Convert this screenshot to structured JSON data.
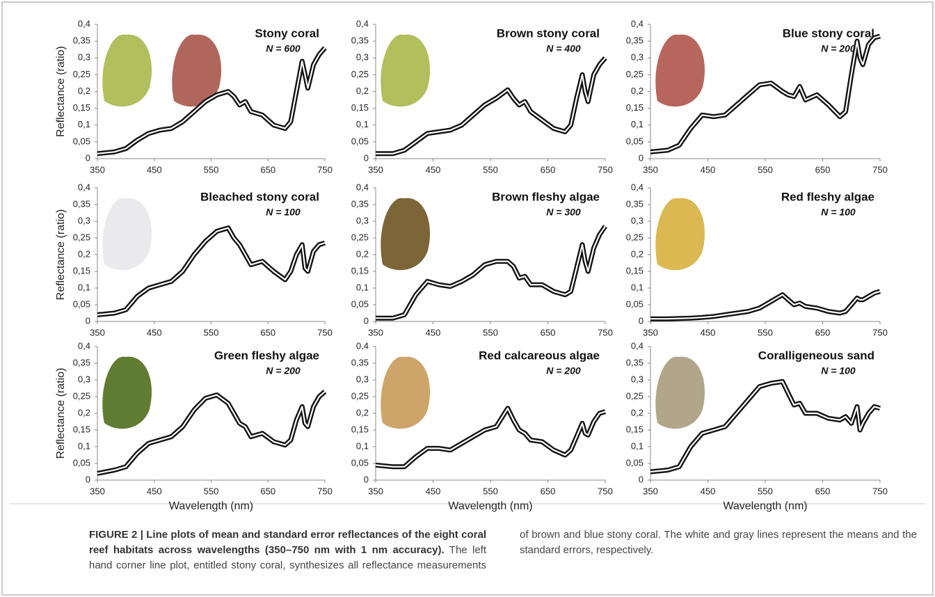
{
  "chart_data": [
    {
      "type": "line",
      "title": "Stony coral",
      "subtitle": "N = 600",
      "y_label": "Reflectance (ratio)",
      "color": "#ffffff",
      "x": [
        350,
        380,
        400,
        420,
        440,
        460,
        480,
        500,
        520,
        540,
        560,
        580,
        590,
        600,
        610,
        620,
        640,
        660,
        680,
        690,
        700,
        710,
        715,
        720,
        730,
        740,
        750
      ],
      "values": [
        0.015,
        0.02,
        0.03,
        0.055,
        0.075,
        0.085,
        0.09,
        0.11,
        0.14,
        0.17,
        0.19,
        0.2,
        0.185,
        0.16,
        0.17,
        0.14,
        0.13,
        0.1,
        0.09,
        0.11,
        0.2,
        0.29,
        0.25,
        0.21,
        0.28,
        0.31,
        0.33
      ],
      "xlim": [
        350,
        750
      ],
      "xticks": [
        350,
        450,
        550,
        650,
        750
      ],
      "ylim": [
        0,
        0.4
      ],
      "yticks": [
        0,
        {
          "value": 0.05,
          "label": "0,05"
        },
        {
          "value": 0.1,
          "label": "0,1"
        },
        {
          "value": 0.15,
          "label": "0,15"
        },
        {
          "value": 0.2,
          "label": "0,2"
        },
        {
          "value": 0.25,
          "label": "0,25"
        },
        {
          "value": 0.3,
          "label": "0,3"
        },
        {
          "value": 0.35,
          "label": "0,35"
        },
        {
          "value": 0.4,
          "label": "0,4"
        }
      ]
    },
    {
      "type": "line",
      "title": "Brown stony coral",
      "subtitle": "N = 400",
      "color": "#ffffff",
      "x": [
        350,
        380,
        400,
        420,
        440,
        460,
        480,
        500,
        520,
        540,
        560,
        580,
        590,
        600,
        610,
        620,
        640,
        660,
        680,
        690,
        700,
        710,
        715,
        720,
        730,
        740,
        750
      ],
      "values": [
        0.015,
        0.015,
        0.025,
        0.05,
        0.075,
        0.08,
        0.085,
        0.1,
        0.13,
        0.16,
        0.18,
        0.205,
        0.18,
        0.16,
        0.17,
        0.14,
        0.115,
        0.09,
        0.08,
        0.1,
        0.18,
        0.25,
        0.2,
        0.17,
        0.25,
        0.28,
        0.3
      ],
      "xlim": [
        350,
        750
      ],
      "xticks": [
        350,
        450,
        550,
        650,
        750
      ],
      "ylim": [
        0,
        0.4
      ],
      "yticks": [
        0,
        {
          "value": 0.05,
          "label": "0,05"
        },
        {
          "value": 0.1,
          "label": "0,1"
        },
        {
          "value": 0.15,
          "label": "0,15"
        },
        {
          "value": 0.2,
          "label": "0,2"
        },
        {
          "value": 0.25,
          "label": "0,25"
        },
        {
          "value": 0.3,
          "label": "0,3"
        },
        {
          "value": 0.35,
          "label": "0,35"
        },
        {
          "value": 0.4,
          "label": "0,4"
        }
      ]
    },
    {
      "type": "line",
      "title": "Blue stony coral",
      "subtitle": "N = 200",
      "color": "#ffffff",
      "x": [
        350,
        380,
        400,
        420,
        440,
        460,
        480,
        500,
        520,
        540,
        560,
        580,
        590,
        600,
        610,
        620,
        640,
        660,
        680,
        690,
        700,
        710,
        715,
        720,
        730,
        740,
        750
      ],
      "values": [
        0.02,
        0.025,
        0.04,
        0.09,
        0.13,
        0.125,
        0.13,
        0.16,
        0.19,
        0.22,
        0.225,
        0.2,
        0.19,
        0.185,
        0.215,
        0.175,
        0.19,
        0.16,
        0.125,
        0.14,
        0.25,
        0.35,
        0.3,
        0.28,
        0.34,
        0.36,
        0.365
      ],
      "xlim": [
        350,
        750
      ],
      "xticks": [
        350,
        450,
        550,
        650,
        750
      ],
      "ylim": [
        0,
        0.4
      ],
      "yticks": [
        0,
        {
          "value": 0.05,
          "label": "0,05"
        },
        {
          "value": 0.1,
          "label": "0,1"
        },
        {
          "value": 0.15,
          "label": "0,15"
        },
        {
          "value": 0.2,
          "label": "0,2"
        },
        {
          "value": 0.25,
          "label": "0,25"
        },
        {
          "value": 0.3,
          "label": "0,3"
        },
        {
          "value": 0.35,
          "label": "0,35"
        },
        {
          "value": 0.4,
          "label": "0,4"
        }
      ]
    },
    {
      "type": "line",
      "title": "Bleached stony coral",
      "subtitle": "N = 100",
      "y_label": "Reflectance (ratio)",
      "color": "#ffffff",
      "x": [
        350,
        380,
        400,
        420,
        440,
        460,
        480,
        500,
        520,
        540,
        560,
        580,
        590,
        600,
        610,
        620,
        640,
        660,
        680,
        690,
        700,
        710,
        715,
        720,
        730,
        740,
        750
      ],
      "values": [
        0.02,
        0.025,
        0.035,
        0.075,
        0.1,
        0.11,
        0.12,
        0.15,
        0.2,
        0.24,
        0.27,
        0.28,
        0.25,
        0.23,
        0.2,
        0.17,
        0.18,
        0.15,
        0.125,
        0.15,
        0.2,
        0.23,
        0.16,
        0.15,
        0.21,
        0.23,
        0.235
      ],
      "xlim": [
        350,
        750
      ],
      "xticks": [
        350,
        450,
        550,
        650,
        750
      ],
      "ylim": [
        0,
        0.4
      ],
      "yticks": [
        0,
        {
          "value": 0.05,
          "label": "0,05"
        },
        {
          "value": 0.1,
          "label": "0,1"
        },
        {
          "value": 0.15,
          "label": "0,15"
        },
        {
          "value": 0.2,
          "label": "0,2"
        },
        {
          "value": 0.25,
          "label": "0,25"
        },
        {
          "value": 0.3,
          "label": "0,3"
        },
        {
          "value": 0.35,
          "label": "0,35"
        },
        {
          "value": 0.4,
          "label": "0,4"
        }
      ]
    },
    {
      "type": "line",
      "title": "Brown fleshy algae",
      "subtitle": "N = 300",
      "color": "#ffffff",
      "x": [
        350,
        380,
        400,
        420,
        440,
        460,
        480,
        500,
        520,
        540,
        560,
        580,
        590,
        600,
        610,
        620,
        640,
        660,
        680,
        690,
        700,
        710,
        715,
        720,
        730,
        740,
        750
      ],
      "values": [
        0.01,
        0.01,
        0.02,
        0.08,
        0.12,
        0.11,
        0.105,
        0.12,
        0.14,
        0.17,
        0.18,
        0.18,
        0.165,
        0.13,
        0.135,
        0.11,
        0.11,
        0.09,
        0.08,
        0.09,
        0.16,
        0.23,
        0.18,
        0.15,
        0.22,
        0.26,
        0.285
      ],
      "xlim": [
        350,
        750
      ],
      "xticks": [
        350,
        450,
        550,
        650,
        750
      ],
      "ylim": [
        0,
        0.4
      ],
      "yticks": [
        0,
        {
          "value": 0.05,
          "label": "0,05"
        },
        {
          "value": 0.1,
          "label": "0,1"
        },
        {
          "value": 0.15,
          "label": "0,15"
        },
        {
          "value": 0.2,
          "label": "0,2"
        },
        {
          "value": 0.25,
          "label": "0,25"
        },
        {
          "value": 0.3,
          "label": "0,3"
        },
        {
          "value": 0.35,
          "label": "0,35"
        },
        {
          "value": 0.4,
          "label": "0,4"
        }
      ]
    },
    {
      "type": "line",
      "title": "Red fleshy algae",
      "subtitle": "N = 100",
      "color": "#ffffff",
      "x": [
        350,
        380,
        400,
        420,
        440,
        460,
        480,
        500,
        520,
        540,
        560,
        580,
        590,
        600,
        610,
        620,
        640,
        660,
        680,
        690,
        700,
        710,
        715,
        720,
        730,
        740,
        750
      ],
      "values": [
        0.008,
        0.008,
        0.009,
        0.01,
        0.012,
        0.015,
        0.02,
        0.025,
        0.03,
        0.04,
        0.06,
        0.08,
        0.065,
        0.05,
        0.055,
        0.045,
        0.04,
        0.03,
        0.025,
        0.03,
        0.05,
        0.07,
        0.065,
        0.065,
        0.075,
        0.085,
        0.09
      ],
      "xlim": [
        350,
        750
      ],
      "xticks": [
        350,
        450,
        550,
        650,
        750
      ],
      "ylim": [
        0,
        0.4
      ],
      "yticks": [
        0,
        {
          "value": 0.05,
          "label": "0,05"
        },
        {
          "value": 0.1,
          "label": "0,1"
        },
        {
          "value": 0.15,
          "label": "0,15"
        },
        {
          "value": 0.2,
          "label": "0,2"
        },
        {
          "value": 0.25,
          "label": "0,25"
        },
        {
          "value": 0.3,
          "label": "0,3"
        },
        {
          "value": 0.35,
          "label": "0,35"
        },
        {
          "value": 0.4,
          "label": "0,4"
        }
      ]
    },
    {
      "type": "line",
      "title": "Green fleshy algae",
      "subtitle": "N = 200",
      "y_label": "Reflectance (ratio)",
      "x_label": "Wavelength (nm)",
      "color": "#ffffff",
      "x": [
        350,
        380,
        400,
        420,
        440,
        460,
        480,
        500,
        520,
        540,
        560,
        580,
        590,
        600,
        610,
        620,
        640,
        660,
        680,
        690,
        700,
        710,
        715,
        720,
        730,
        740,
        750
      ],
      "values": [
        0.02,
        0.03,
        0.04,
        0.08,
        0.11,
        0.12,
        0.13,
        0.16,
        0.21,
        0.245,
        0.255,
        0.23,
        0.2,
        0.17,
        0.16,
        0.13,
        0.14,
        0.115,
        0.105,
        0.12,
        0.18,
        0.22,
        0.17,
        0.16,
        0.22,
        0.25,
        0.265
      ],
      "xlim": [
        350,
        750
      ],
      "xticks": [
        350,
        450,
        550,
        650,
        750
      ],
      "ylim": [
        0,
        0.4
      ],
      "yticks": [
        0,
        {
          "value": 0.05,
          "label": "0,05"
        },
        {
          "value": 0.1,
          "label": "0,1"
        },
        {
          "value": 0.15,
          "label": "0,15"
        },
        {
          "value": 0.2,
          "label": "0,2"
        },
        {
          "value": 0.25,
          "label": "0,25"
        },
        {
          "value": 0.3,
          "label": "0,3"
        },
        {
          "value": 0.35,
          "label": "0,35"
        },
        {
          "value": 0.4,
          "label": "0,4"
        }
      ]
    },
    {
      "type": "line",
      "title": "Red calcareous algae",
      "subtitle": "N = 200",
      "x_label": "Wavelength (nm)",
      "color": "#ffffff",
      "x": [
        350,
        380,
        400,
        420,
        440,
        460,
        480,
        500,
        520,
        540,
        560,
        580,
        590,
        600,
        610,
        620,
        640,
        660,
        680,
        690,
        700,
        710,
        715,
        720,
        730,
        740,
        750
      ],
      "values": [
        0.045,
        0.04,
        0.04,
        0.07,
        0.095,
        0.095,
        0.09,
        0.11,
        0.13,
        0.15,
        0.16,
        0.215,
        0.18,
        0.15,
        0.14,
        0.12,
        0.115,
        0.09,
        0.075,
        0.09,
        0.13,
        0.17,
        0.14,
        0.135,
        0.175,
        0.2,
        0.205
      ],
      "xlim": [
        350,
        750
      ],
      "xticks": [
        350,
        450,
        550,
        650,
        750
      ],
      "ylim": [
        0,
        0.4
      ],
      "yticks": [
        0,
        {
          "value": 0.05,
          "label": "0,05"
        },
        {
          "value": 0.1,
          "label": "0,1"
        },
        {
          "value": 0.15,
          "label": "0,15"
        },
        {
          "value": 0.2,
          "label": "0,2"
        },
        {
          "value": 0.25,
          "label": "0,25"
        },
        {
          "value": 0.3,
          "label": "0,3"
        },
        {
          "value": 0.35,
          "label": "0,35"
        },
        {
          "value": 0.4,
          "label": "0,4"
        }
      ]
    },
    {
      "type": "line",
      "title": "Coralligeneous sand",
      "subtitle": "N = 100",
      "x_label": "Wavelength (nm)",
      "color": "#ffffff",
      "x": [
        350,
        380,
        400,
        420,
        440,
        460,
        480,
        500,
        520,
        540,
        560,
        580,
        590,
        600,
        610,
        620,
        640,
        660,
        680,
        690,
        700,
        710,
        715,
        720,
        730,
        740,
        750
      ],
      "values": [
        0.025,
        0.03,
        0.04,
        0.1,
        0.14,
        0.15,
        0.16,
        0.2,
        0.24,
        0.28,
        0.29,
        0.295,
        0.26,
        0.225,
        0.23,
        0.2,
        0.2,
        0.185,
        0.18,
        0.19,
        0.17,
        0.22,
        0.15,
        0.17,
        0.2,
        0.22,
        0.215
      ],
      "xlim": [
        350,
        750
      ],
      "xticks": [
        350,
        450,
        550,
        650,
        750
      ],
      "ylim": [
        0,
        0.4
      ],
      "yticks": [
        0,
        {
          "value": 0.05,
          "label": "0,05"
        },
        {
          "value": 0.1,
          "label": "0,1"
        },
        {
          "value": 0.15,
          "label": "0,15"
        },
        {
          "value": 0.2,
          "label": "0,2"
        },
        {
          "value": 0.25,
          "label": "0,25"
        },
        {
          "value": 0.3,
          "label": "0,3"
        },
        {
          "value": 0.35,
          "label": "0,35"
        },
        {
          "value": 0.4,
          "label": "0,4"
        }
      ]
    }
  ],
  "caption": {
    "bold": "FIGURE 2 | Line plots of mean and standard error reflectances of the eight coral reef habitats across wavelengths (350–750 nm with 1 nm accuracy).",
    "text": "The left hand corner line plot, entitled stony coral, synthesizes all reflectance measurements of brown and blue stony coral. The white and gray lines represent the means and the standard errors, respectively."
  }
}
